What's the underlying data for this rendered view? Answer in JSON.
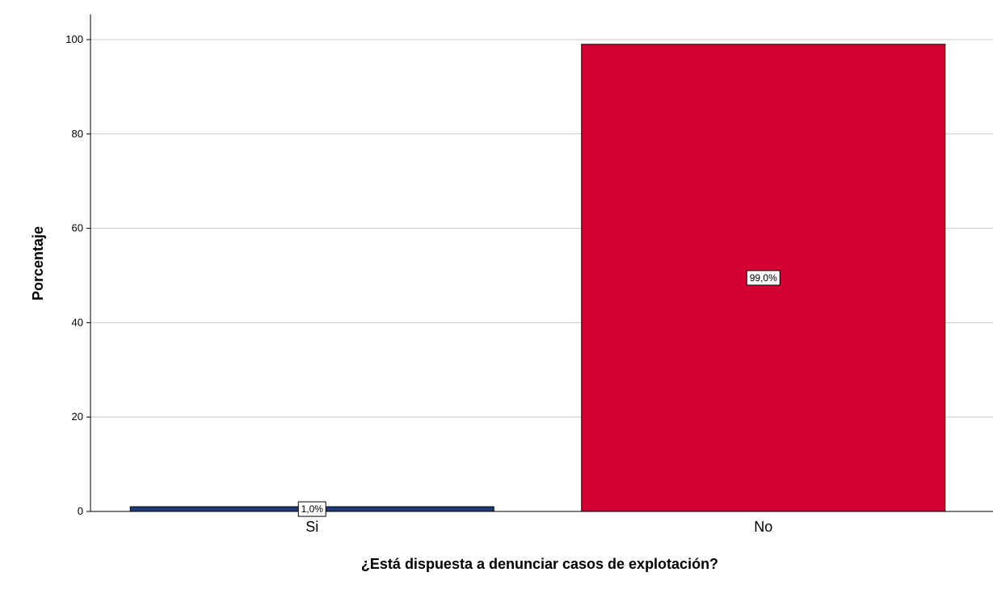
{
  "chart_data": {
    "type": "bar",
    "title": "",
    "xlabel": "¿Está dispuesta a denunciar casos de explotación?",
    "ylabel": "Porcentaje",
    "categories": [
      "Si",
      "No"
    ],
    "values": [
      1.0,
      99.0
    ],
    "data_labels": [
      "1,0%",
      "99,0%"
    ],
    "colors": [
      "#1f3a7a",
      "#d50032"
    ],
    "ylim": [
      0,
      105
    ],
    "yticks": [
      0,
      20,
      40,
      60,
      80,
      100
    ],
    "grid": true,
    "legend": "none"
  }
}
